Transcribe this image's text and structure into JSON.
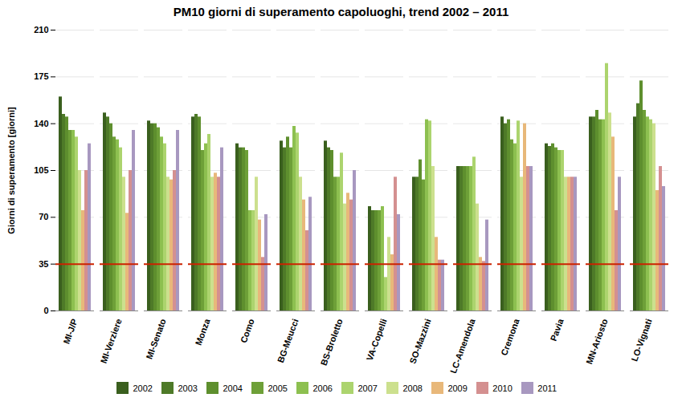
{
  "chart_data": {
    "type": "bar",
    "title": "PM10 giorni di superamento capoluoghi, trend 2002 – 2011",
    "ylabel": "Giorni di superamento [giorni]",
    "categories": [
      "MI-J/P",
      "MI-Verziere",
      "MI-Senato",
      "Monza",
      "Como",
      "BG-Meucci",
      "BS-Broletto",
      "VA-Copelli",
      "SO-Mazzini",
      "LC-Amendola",
      "Cremona",
      "Pavia",
      "MN-Ariosto",
      "LO-Vignati"
    ],
    "series": [
      {
        "name": "2002",
        "color": "#3a5f1e",
        "values": [
          160,
          148,
          142,
          145,
          125,
          127,
          127,
          78,
          100,
          108,
          145,
          125,
          145,
          145
        ]
      },
      {
        "name": "2003",
        "color": "#4e7a28",
        "values": [
          147,
          145,
          140,
          147,
          122,
          122,
          122,
          75,
          100,
          108,
          140,
          123,
          145,
          155
        ]
      },
      {
        "name": "2004",
        "color": "#5e8f2e",
        "values": [
          145,
          140,
          140,
          145,
          122,
          130,
          120,
          75,
          113,
          108,
          143,
          125,
          150,
          172
        ]
      },
      {
        "name": "2005",
        "color": "#6ea038",
        "values": [
          135,
          130,
          137,
          120,
          120,
          122,
          100,
          75,
          98,
          108,
          128,
          122,
          143,
          150
        ]
      },
      {
        "name": "2006",
        "color": "#8dc050",
        "values": [
          135,
          128,
          130,
          125,
          75,
          138,
          100,
          78,
          143,
          108,
          125,
          120,
          143,
          145
        ]
      },
      {
        "name": "2007",
        "color": "#acd46e",
        "values": [
          130,
          122,
          125,
          132,
          75,
          133,
          118,
          25,
          142,
          115,
          142,
          120,
          185,
          143
        ]
      },
      {
        "name": "2008",
        "color": "#cce08e",
        "values": [
          105,
          100,
          100,
          100,
          100,
          100,
          80,
          55,
          108,
          80,
          100,
          100,
          148,
          140
        ]
      },
      {
        "name": "2009",
        "color": "#e8b87a",
        "values": [
          75,
          73,
          98,
          103,
          68,
          83,
          88,
          42,
          55,
          40,
          140,
          100,
          130,
          90
        ]
      },
      {
        "name": "2010",
        "color": "#d49090",
        "values": [
          105,
          105,
          105,
          100,
          40,
          60,
          83,
          100,
          38,
          37,
          108,
          100,
          75,
          108
        ]
      },
      {
        "name": "2011",
        "color": "#a898c0",
        "values": [
          125,
          135,
          135,
          122,
          72,
          85,
          105,
          72,
          38,
          68,
          108,
          100,
          100,
          93
        ]
      }
    ],
    "threshold": {
      "value": 35,
      "color": "#cc2200"
    },
    "ylim": [
      0,
      210
    ],
    "yticks": [
      0,
      35,
      70,
      105,
      140,
      175,
      210
    ],
    "grid": true,
    "legend": "bottom"
  }
}
